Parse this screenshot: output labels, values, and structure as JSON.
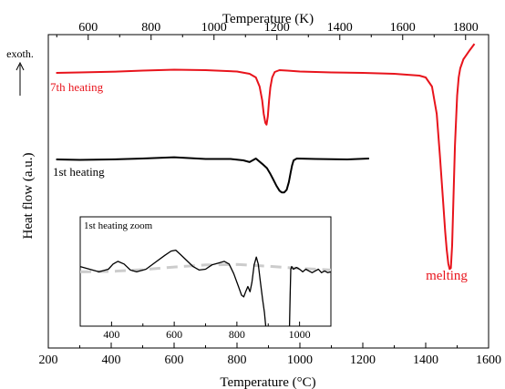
{
  "chart_data": {
    "type": "line",
    "xlabel_bottom": "Temperature (°C)",
    "xlabel_top": "Temperature (K)",
    "ylabel": "Heat flow (a.u.)",
    "xlim_c": [
      200,
      1600
    ],
    "xticks_bottom": [
      200,
      400,
      600,
      800,
      1000,
      1200,
      1400,
      1600
    ],
    "xticks_top": [
      600,
      800,
      1000,
      1200,
      1400,
      1600,
      1800
    ],
    "y_ticks_shown": false,
    "grid": false,
    "annotations": {
      "exotherm_label": "exoth.",
      "seventh_label": "7th heating",
      "first_label": "1st heating",
      "melting_label": "melting"
    },
    "series": [
      {
        "name": "7th heating",
        "color": "#e8141c",
        "x": [
          225,
          300,
          400,
          500,
          600,
          700,
          800,
          840,
          860,
          872,
          880,
          885,
          890,
          894,
          898,
          902,
          906,
          912,
          920,
          935,
          960,
          1000,
          1100,
          1200,
          1300,
          1380,
          1400,
          1420,
          1435,
          1445,
          1455,
          1462,
          1467,
          1472,
          1476,
          1480,
          1484,
          1488,
          1493,
          1500,
          1505,
          1510,
          1520,
          1540,
          1555
        ],
        "y": [
          0.0,
          0.05,
          0.12,
          0.25,
          0.35,
          0.3,
          0.15,
          -0.1,
          -0.5,
          -1.5,
          -3.0,
          -4.5,
          -5.5,
          -5.7,
          -4.8,
          -3.0,
          -1.6,
          -0.5,
          0.1,
          0.3,
          0.25,
          0.15,
          0.05,
          0.0,
          -0.1,
          -0.3,
          -0.5,
          -1.5,
          -4.5,
          -9.0,
          -14.0,
          -17.5,
          -19.5,
          -21.0,
          -21.6,
          -21.5,
          -19.0,
          -14.0,
          -8.0,
          -2.5,
          -0.5,
          0.5,
          1.5,
          2.5,
          3.2
        ]
      },
      {
        "name": "1st heating",
        "color": "#000000",
        "x": [
          225,
          300,
          400,
          500,
          600,
          700,
          780,
          820,
          840,
          860,
          880,
          895,
          905,
          915,
          925,
          935,
          942,
          950,
          958,
          965,
          970,
          975,
          980,
          990,
          1050,
          1150,
          1220
        ],
        "y": [
          0.0,
          -0.05,
          0.0,
          0.1,
          0.25,
          0.05,
          0.05,
          -0.1,
          -0.3,
          0.1,
          -0.5,
          -1.0,
          -1.6,
          -2.3,
          -3.0,
          -3.6,
          -3.8,
          -3.8,
          -3.5,
          -2.6,
          -1.6,
          -0.7,
          -0.1,
          0.1,
          0.05,
          0.0,
          0.1
        ]
      }
    ],
    "inset": {
      "title": "1st heating zoom",
      "xlim": [
        300,
        1100
      ],
      "xticks": [
        400,
        600,
        800,
        1000
      ],
      "baseline": {
        "style": "dashed",
        "color": "#cccccc",
        "x": [
          300,
          400,
          500,
          600,
          700,
          800,
          900,
          1000,
          1100
        ],
        "y": [
          0.7,
          0.75,
          0.95,
          1.25,
          1.5,
          1.55,
          1.35,
          1.1,
          0.9
        ]
      },
      "curve": {
        "color": "#000000",
        "x": [
          300,
          330,
          360,
          390,
          405,
          420,
          440,
          460,
          480,
          510,
          540,
          570,
          590,
          605,
          620,
          640,
          660,
          680,
          700,
          720,
          740,
          760,
          775,
          790,
          805,
          815,
          822,
          828,
          835,
          842,
          848,
          855,
          862,
          868,
          875,
          882,
          888,
          892
        ],
        "y": [
          1.3,
          1.0,
          0.7,
          1.0,
          1.6,
          1.9,
          1.6,
          0.9,
          0.7,
          1.0,
          1.8,
          2.6,
          3.1,
          3.2,
          2.7,
          2.0,
          1.3,
          0.9,
          1.0,
          1.5,
          1.7,
          1.9,
          1.6,
          0.5,
          -1.0,
          -2.0,
          -2.2,
          -1.6,
          -1.0,
          -1.6,
          -0.5,
          1.5,
          2.4,
          1.6,
          -0.5,
          -2.5,
          -4.0,
          -6.5
        ]
      },
      "curve2": {
        "color": "#000000",
        "x": [
          968,
          970,
          972,
          975,
          980,
          990,
          1000,
          1010,
          1020,
          1030,
          1040,
          1050,
          1060,
          1070,
          1080,
          1090,
          1100
        ],
        "y": [
          -6.5,
          -2.0,
          1.0,
          1.3,
          1.0,
          1.2,
          1.0,
          0.7,
          1.0,
          0.8,
          0.6,
          0.8,
          1.0,
          0.6,
          0.8,
          0.6,
          0.7
        ]
      }
    }
  }
}
